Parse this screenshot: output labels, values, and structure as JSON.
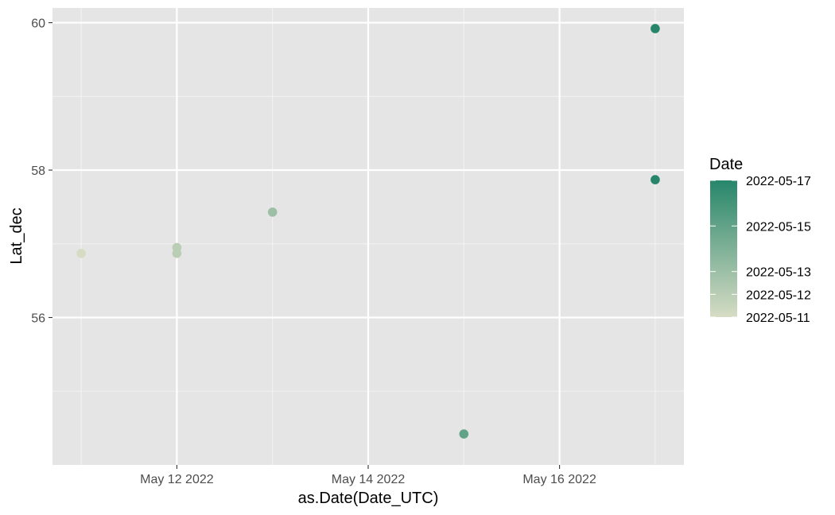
{
  "chart_data": {
    "type": "scatter",
    "title": "",
    "xlabel": "as.Date(Date_UTC)",
    "ylabel": "Lat_dec",
    "x_ticks": [
      "2022-05-12",
      "2022-05-14",
      "2022-05-16"
    ],
    "x_tick_labels": [
      "May 12 2022",
      "May 14 2022",
      "May 16 2022"
    ],
    "x_range": [
      "2022-05-10",
      "2022-05-17"
    ],
    "y_ticks": [
      56,
      58,
      60
    ],
    "y_range": [
      54.0,
      60.2
    ],
    "grid": true,
    "points": [
      {
        "x": "2022-05-11",
        "y": 56.87,
        "color_value": "2022-05-11"
      },
      {
        "x": "2022-05-12",
        "y": 56.95,
        "color_value": "2022-05-12"
      },
      {
        "x": "2022-05-12",
        "y": 56.87,
        "color_value": "2022-05-12"
      },
      {
        "x": "2022-05-13",
        "y": 57.43,
        "color_value": "2022-05-13"
      },
      {
        "x": "2022-05-15",
        "y": 54.42,
        "color_value": "2022-05-15"
      },
      {
        "x": "2022-05-17",
        "y": 59.92,
        "color_value": "2022-05-17"
      },
      {
        "x": "2022-05-17",
        "y": 57.87,
        "color_value": "2022-05-17"
      }
    ],
    "legend": {
      "title": "Date",
      "type": "colorbar",
      "position": "right",
      "range": [
        "2022-05-11",
        "2022-05-17"
      ],
      "breaks": [
        "2022-05-11",
        "2022-05-12",
        "2022-05-13",
        "2022-05-15",
        "2022-05-17"
      ],
      "low_color": "#d6dcc4",
      "high_color": "#27866a"
    }
  },
  "colors": {
    "panel_background": "#e5e5e5",
    "grid_major": "#ffffff",
    "grid_minor": "#f2f2f2"
  }
}
